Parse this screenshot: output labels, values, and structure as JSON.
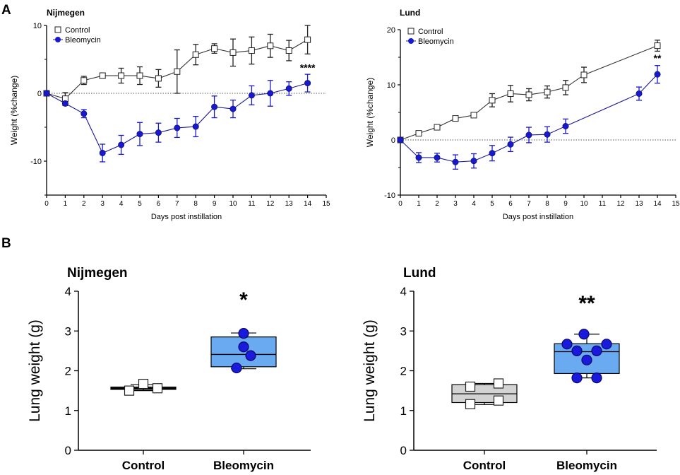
{
  "panel_labels": [
    "A",
    "B"
  ],
  "colors": {
    "axis": "#000000",
    "control_line": "#333333",
    "control_marker_fill": "#ffffff",
    "bleo_line": "#1a1a99",
    "bleo_marker": "#1919cc",
    "box_control": "#d3d3d3",
    "box_bleo": "#6aaaf0",
    "dot_bleo": "#1a1adc",
    "dot_control_fill": "#ffffff"
  },
  "chart_data": [
    {
      "id": "A1",
      "type": "line",
      "title": "Nijmegen",
      "xlabel": "Days post instillation",
      "ylabel": "Weight (%change)",
      "xlim": [
        0,
        15
      ],
      "ylim": [
        -15,
        10
      ],
      "xticks": [
        "0",
        "1",
        "2",
        "3",
        "4",
        "5",
        "6",
        "7",
        "8",
        "9",
        "10",
        "11",
        "12",
        "13",
        "14",
        "15"
      ],
      "yticks": [
        "10",
        "0",
        "-10"
      ],
      "ytick_values": [
        10,
        0,
        -10
      ],
      "legend": [
        "Control",
        "Bleomycin"
      ],
      "annotation": {
        "text": "****",
        "x": 14,
        "y": 3.3
      },
      "series": [
        {
          "name": "Control",
          "marker": "square",
          "x": [
            0,
            1,
            2,
            3,
            4,
            5,
            6,
            7,
            8,
            9,
            10,
            11,
            12,
            13,
            14
          ],
          "y": [
            0,
            -0.8,
            1.9,
            2.6,
            2.6,
            2.6,
            2.2,
            3.2,
            5.7,
            6.6,
            6.0,
            6.3,
            7.0,
            6.3,
            7.9
          ],
          "err": [
            0.3,
            0.9,
            0.6,
            0.4,
            1.1,
            1.3,
            1.3,
            3.2,
            1.5,
            0.7,
            2.0,
            2.0,
            1.7,
            1.5,
            2.1
          ]
        },
        {
          "name": "Bleomycin",
          "marker": "circle",
          "x": [
            0,
            1,
            2,
            3,
            4,
            5,
            6,
            7,
            8,
            9,
            10,
            11,
            12,
            13,
            14
          ],
          "y": [
            0,
            -1.5,
            -3.0,
            -8.8,
            -7.6,
            -6.0,
            -5.8,
            -5.1,
            -4.9,
            -2.0,
            -2.3,
            -0.3,
            0.0,
            0.7,
            1.5
          ],
          "err": [
            0.2,
            0.3,
            0.6,
            1.3,
            1.4,
            1.7,
            1.4,
            1.4,
            1.5,
            1.6,
            1.3,
            1.4,
            1.9,
            1.0,
            1.3
          ]
        }
      ]
    },
    {
      "id": "A2",
      "type": "line",
      "title": "Lund",
      "xlabel": "Days post instillation",
      "ylabel": "Weight (%change)",
      "xlim": [
        0,
        15
      ],
      "ylim": [
        -10,
        20
      ],
      "xticks": [
        "0",
        "1",
        "2",
        "3",
        "4",
        "5",
        "6",
        "7",
        "8",
        "9",
        "10",
        "11",
        "12",
        "13",
        "14",
        "15"
      ],
      "yticks": [
        "20",
        "10",
        "0",
        "-10"
      ],
      "ytick_values": [
        20,
        10,
        0,
        -10
      ],
      "legend": [
        "Control",
        "Bleomycin"
      ],
      "annotation": {
        "text": "**",
        "x": 14,
        "y": 14.2
      },
      "series": [
        {
          "name": "Control",
          "marker": "square",
          "x": [
            0,
            1,
            2,
            3,
            4,
            5,
            6,
            7,
            8,
            9,
            10,
            14
          ],
          "y": [
            0,
            1.2,
            2.3,
            3.9,
            4.5,
            7.2,
            8.4,
            8.2,
            8.7,
            9.5,
            11.8,
            17.1
          ],
          "err": [
            0.2,
            0.3,
            0.3,
            0.3,
            0.3,
            1.2,
            1.5,
            1.1,
            1.1,
            1.3,
            1.4,
            1.0
          ]
        },
        {
          "name": "Bleomycin",
          "marker": "circle",
          "x": [
            0,
            1,
            2,
            3,
            4,
            5,
            6,
            7,
            8,
            9,
            13,
            14
          ],
          "y": [
            0,
            -3.2,
            -3.2,
            -4.0,
            -3.8,
            -2.4,
            -0.8,
            0.9,
            1.0,
            2.5,
            8.4,
            11.9
          ],
          "err": [
            0.2,
            0.9,
            0.8,
            1.3,
            1.3,
            1.4,
            1.3,
            1.4,
            1.4,
            1.3,
            1.2,
            1.6
          ]
        }
      ]
    },
    {
      "id": "B1",
      "type": "box",
      "title": "Nijmegen",
      "ylabel": "Lung weight (g)",
      "ylim": [
        0,
        4
      ],
      "yticks": [
        "0",
        "1",
        "2",
        "3",
        "4"
      ],
      "ytick_values": [
        0,
        1,
        2,
        3,
        4
      ],
      "categories": [
        "Control",
        "Bleomycin"
      ],
      "annotation": "*",
      "groups": [
        {
          "name": "Control",
          "min": 1.5,
          "q1": 1.53,
          "median": 1.56,
          "q3": 1.59,
          "max": 1.65,
          "points": [
            1.5,
            1.67,
            1.56
          ],
          "point_offsets": [
            -0.5,
            0,
            0.5
          ],
          "style": "square"
        },
        {
          "name": "Bleomycin",
          "min": 2.05,
          "q1": 2.1,
          "median": 2.41,
          "q3": 2.85,
          "max": 2.95,
          "points": [
            2.94,
            2.6,
            2.38,
            2.07
          ],
          "point_offsets": [
            0,
            0,
            0.25,
            -0.25
          ],
          "style": "circle"
        }
      ]
    },
    {
      "id": "B2",
      "type": "box",
      "title": "Lund",
      "ylabel": "Lung weight (g)",
      "ylim": [
        0,
        4
      ],
      "yticks": [
        "0",
        "1",
        "2",
        "3",
        "4"
      ],
      "ytick_values": [
        0,
        1,
        2,
        3,
        4
      ],
      "categories": [
        "Control",
        "Bleomycin"
      ],
      "annotation": "**",
      "groups": [
        {
          "name": "Control",
          "min": 1.15,
          "q1": 1.2,
          "median": 1.42,
          "q3": 1.65,
          "max": 1.68,
          "points": [
            1.6,
            1.68,
            1.16,
            1.25
          ],
          "point_offsets": [
            -0.5,
            0.5,
            -0.5,
            0.5
          ],
          "style": "square"
        },
        {
          "name": "Bleomycin",
          "min": 1.82,
          "q1": 1.93,
          "median": 2.48,
          "q3": 2.68,
          "max": 2.92,
          "points": [
            2.92,
            2.67,
            2.5,
            2.67,
            2.5,
            2.27,
            1.82,
            1.82
          ],
          "point_offsets": [
            -0.1,
            -0.7,
            -0.35,
            0.7,
            0.35,
            0,
            -0.35,
            0.35
          ],
          "style": "circle"
        }
      ]
    }
  ]
}
